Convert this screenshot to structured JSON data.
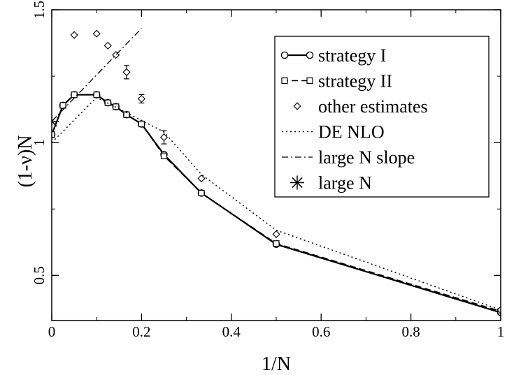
{
  "chart_data": {
    "type": "line",
    "xlabel": "1/N",
    "ylabel": "(1-ν)N",
    "xlim": [
      0,
      1
    ],
    "ylim": [
      0.33,
      1.5
    ],
    "x_ticks": [
      0,
      0.2,
      0.4,
      0.6,
      0.8,
      1
    ],
    "x_tick_labels": [
      "0",
      "0.2",
      "0.4",
      "0.6",
      "0.8",
      "1"
    ],
    "y_ticks": [
      0.5,
      1,
      1.5
    ],
    "y_tick_labels": [
      "0.5",
      "1",
      "1.5"
    ],
    "grid": false,
    "legend_position": "top-right",
    "series": [
      {
        "name": "strategy I",
        "style": "solid-circle",
        "x": [
          0,
          0.025,
          0.05,
          0.1,
          0.125,
          0.1429,
          0.1667,
          0.2,
          0.25,
          0.3333,
          0.5,
          1
        ],
        "y": [
          1.03,
          1.14,
          1.18,
          1.18,
          1.15,
          1.135,
          1.105,
          1.07,
          0.955,
          0.81,
          0.617,
          0.36
        ]
      },
      {
        "name": "strategy II",
        "style": "dashed-square",
        "x": [
          0,
          0.025,
          0.05,
          0.1,
          0.125,
          0.1429,
          0.1667,
          0.2,
          0.25,
          0.3333,
          0.5,
          1
        ],
        "y": [
          1.03,
          1.14,
          1.18,
          1.18,
          1.15,
          1.135,
          1.105,
          1.07,
          0.95,
          0.81,
          0.62,
          0.365
        ]
      },
      {
        "name": "other estimates",
        "style": "diamond",
        "x": [
          0.05,
          0.1,
          0.125,
          0.1429,
          0.1667,
          0.2,
          0.25,
          0.3333,
          0.5,
          1
        ],
        "y": [
          1.405,
          1.41,
          1.365,
          1.33,
          1.265,
          1.165,
          1.02,
          0.865,
          0.655,
          0.37
        ],
        "error": [
          0,
          0,
          0,
          0,
          0.025,
          0.016,
          0.025,
          0,
          0,
          0
        ]
      },
      {
        "name": "DE NLO",
        "style": "dotted",
        "x": [
          0,
          0.1,
          0.25,
          0.3333,
          0.5,
          1
        ],
        "y": [
          1.0,
          1.17,
          1.04,
          0.88,
          0.67,
          0.37
        ]
      },
      {
        "name": "large N  slope",
        "style": "dashdot",
        "x": [
          0,
          0.2
        ],
        "y": [
          1.08,
          1.43
        ]
      },
      {
        "name": "large N",
        "style": "star",
        "x": [
          0
        ],
        "y": [
          1.08
        ]
      }
    ]
  }
}
